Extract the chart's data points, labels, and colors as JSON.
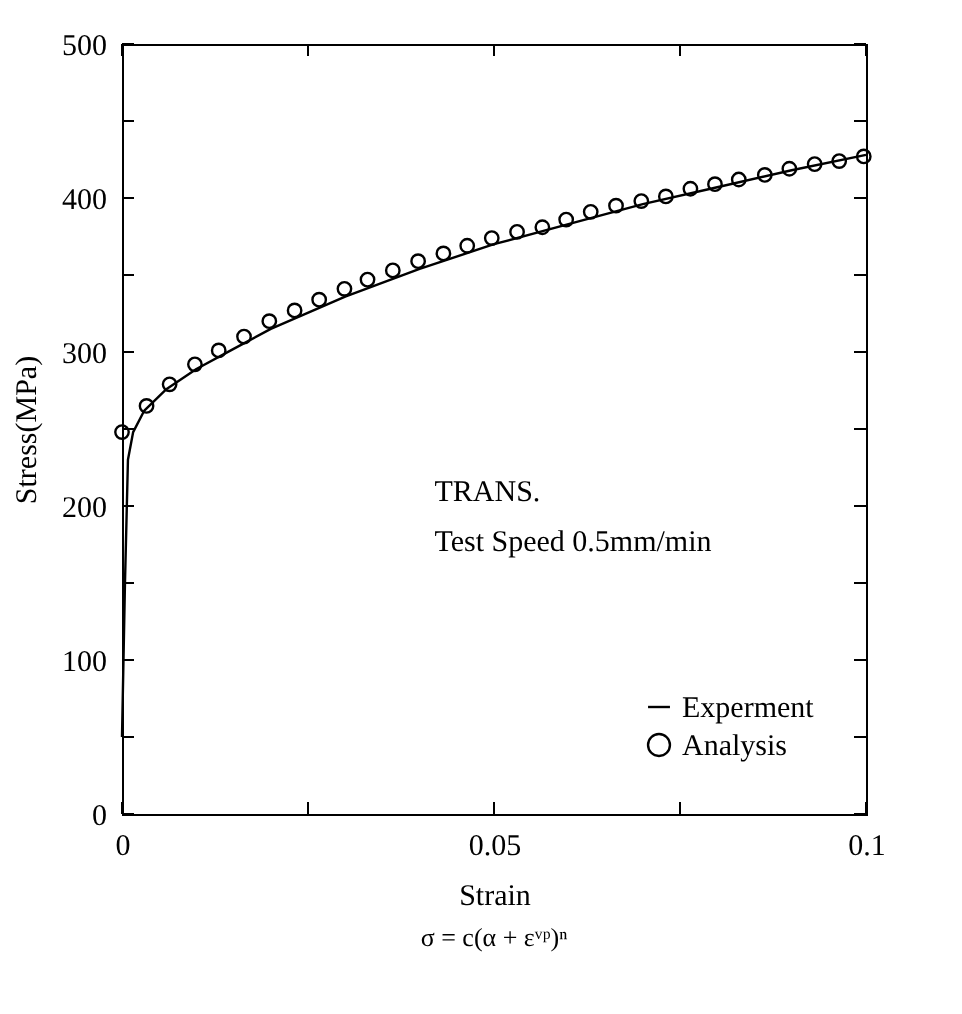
{
  "chart_data": {
    "type": "line",
    "xlabel": "Strain",
    "ylabel": "Stress(MPa)",
    "annotations": [
      "TRANS.",
      "Test Speed 0.5mm/min",
      "σ = c(α + εᵛᵖ)ⁿ"
    ],
    "xlim": [
      0,
      0.1
    ],
    "ylim": [
      0,
      500
    ],
    "xticks": [
      0,
      {
        "value": 0.025,
        "label": null
      },
      0.05,
      {
        "value": 0.075,
        "label": null
      },
      0.1
    ],
    "yticks": [
      0,
      {
        "value": 50,
        "label": null
      },
      100,
      {
        "value": 150,
        "label": null
      },
      200,
      {
        "value": 250,
        "label": null
      },
      300,
      {
        "value": 350,
        "label": null
      },
      400,
      {
        "value": 450,
        "label": null
      },
      500
    ],
    "grid": false,
    "legend": "bottom right",
    "series": [
      {
        "name": "Experment",
        "color": "#000000",
        "marker": "none",
        "line_style": "solid",
        "x": [
          0,
          0.0004,
          0.0008,
          0.0015,
          0.003,
          0.006,
          0.01,
          0.015,
          0.02,
          0.03,
          0.04,
          0.05,
          0.06,
          0.07,
          0.08,
          0.09,
          0.1
        ],
        "values": [
          50,
          150,
          230,
          248,
          262,
          276,
          289,
          302,
          315,
          336,
          354,
          370,
          383,
          396,
          407,
          418,
          428
        ]
      },
      {
        "name": "Analysis",
        "type": "scatter",
        "color": "#000000",
        "marker": "circle",
        "x": [
          0,
          0.0033,
          0.0064,
          0.0098,
          0.013,
          0.0164,
          0.0198,
          0.0232,
          0.0265,
          0.0299,
          0.033,
          0.0364,
          0.0398,
          0.0432,
          0.0464,
          0.0497,
          0.0531,
          0.0565,
          0.0597,
          0.063,
          0.0664,
          0.0698,
          0.0731,
          0.0764,
          0.0797,
          0.0829,
          0.0864,
          0.0897,
          0.0931,
          0.0964,
          0.0997
        ],
        "values": [
          248,
          265,
          279,
          292,
          301,
          310,
          320,
          327,
          334,
          341,
          347,
          353,
          359,
          364,
          369,
          374,
          378,
          381,
          386,
          391,
          395,
          398,
          401,
          406,
          409,
          412,
          415,
          419,
          422,
          424,
          427
        ]
      }
    ]
  }
}
